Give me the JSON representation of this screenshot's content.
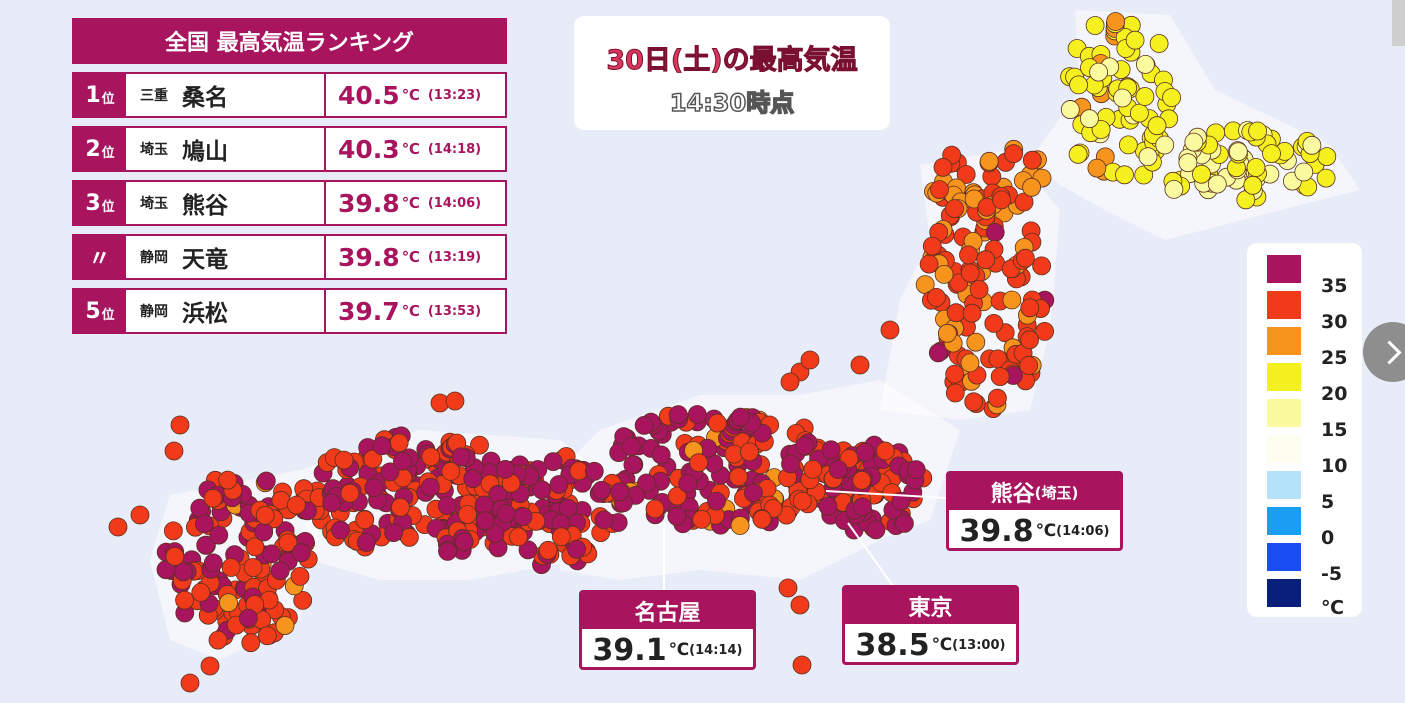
{
  "ranking": {
    "title": "全国 最高気温ランキング",
    "rows": [
      {
        "pos": "1",
        "suffix": "位",
        "pref": "三重",
        "city": "桑名",
        "temp": "40.5",
        "unit": "℃",
        "time": "(13:23)"
      },
      {
        "pos": "2",
        "suffix": "位",
        "pref": "埼玉",
        "city": "鳩山",
        "temp": "40.3",
        "unit": "℃",
        "time": "(14:18)"
      },
      {
        "pos": "3",
        "suffix": "位",
        "pref": "埼玉",
        "city": "熊谷",
        "temp": "39.8",
        "unit": "℃",
        "time": "(14:06)"
      },
      {
        "pos": "〃",
        "suffix": "",
        "pref": "静岡",
        "city": "天竜",
        "temp": "39.8",
        "unit": "℃",
        "time": "(13:19)"
      },
      {
        "pos": "5",
        "suffix": "位",
        "pref": "静岡",
        "city": "浜松",
        "temp": "39.7",
        "unit": "℃",
        "time": "(13:53)"
      }
    ]
  },
  "map_title": {
    "main": "30日(土)の最高気温",
    "sub": "14:30時点"
  },
  "legend": {
    "entries": [
      {
        "label": "35",
        "color": "#a8145e"
      },
      {
        "label": "30",
        "color": "#f03a1a"
      },
      {
        "label": "25",
        "color": "#f7941d"
      },
      {
        "label": "20",
        "color": "#f5f01f"
      },
      {
        "label": "15",
        "color": "#fafa9e"
      },
      {
        "label": "10",
        "color": "#fdfdf0"
      },
      {
        "label": "5",
        "color": "#b4e2f8"
      },
      {
        "label": "0",
        "color": "#1b9ef2"
      },
      {
        "label": "-5",
        "color": "#1b4ef2"
      },
      {
        "label": "",
        "color": "#0a1f7a"
      }
    ],
    "unit": "℃"
  },
  "callouts": {
    "kumagaya": {
      "name": "熊谷",
      "pref": "(埼玉)",
      "temp": "39.8",
      "unit": "℃",
      "time": "(14:06)"
    },
    "nagoya": {
      "name": "名古屋",
      "temp": "39.1",
      "unit": "℃",
      "time": "(14:14)"
    },
    "tokyo": {
      "name": "東京",
      "temp": "38.5",
      "unit": "℃",
      "time": "(13:00)"
    }
  }
}
